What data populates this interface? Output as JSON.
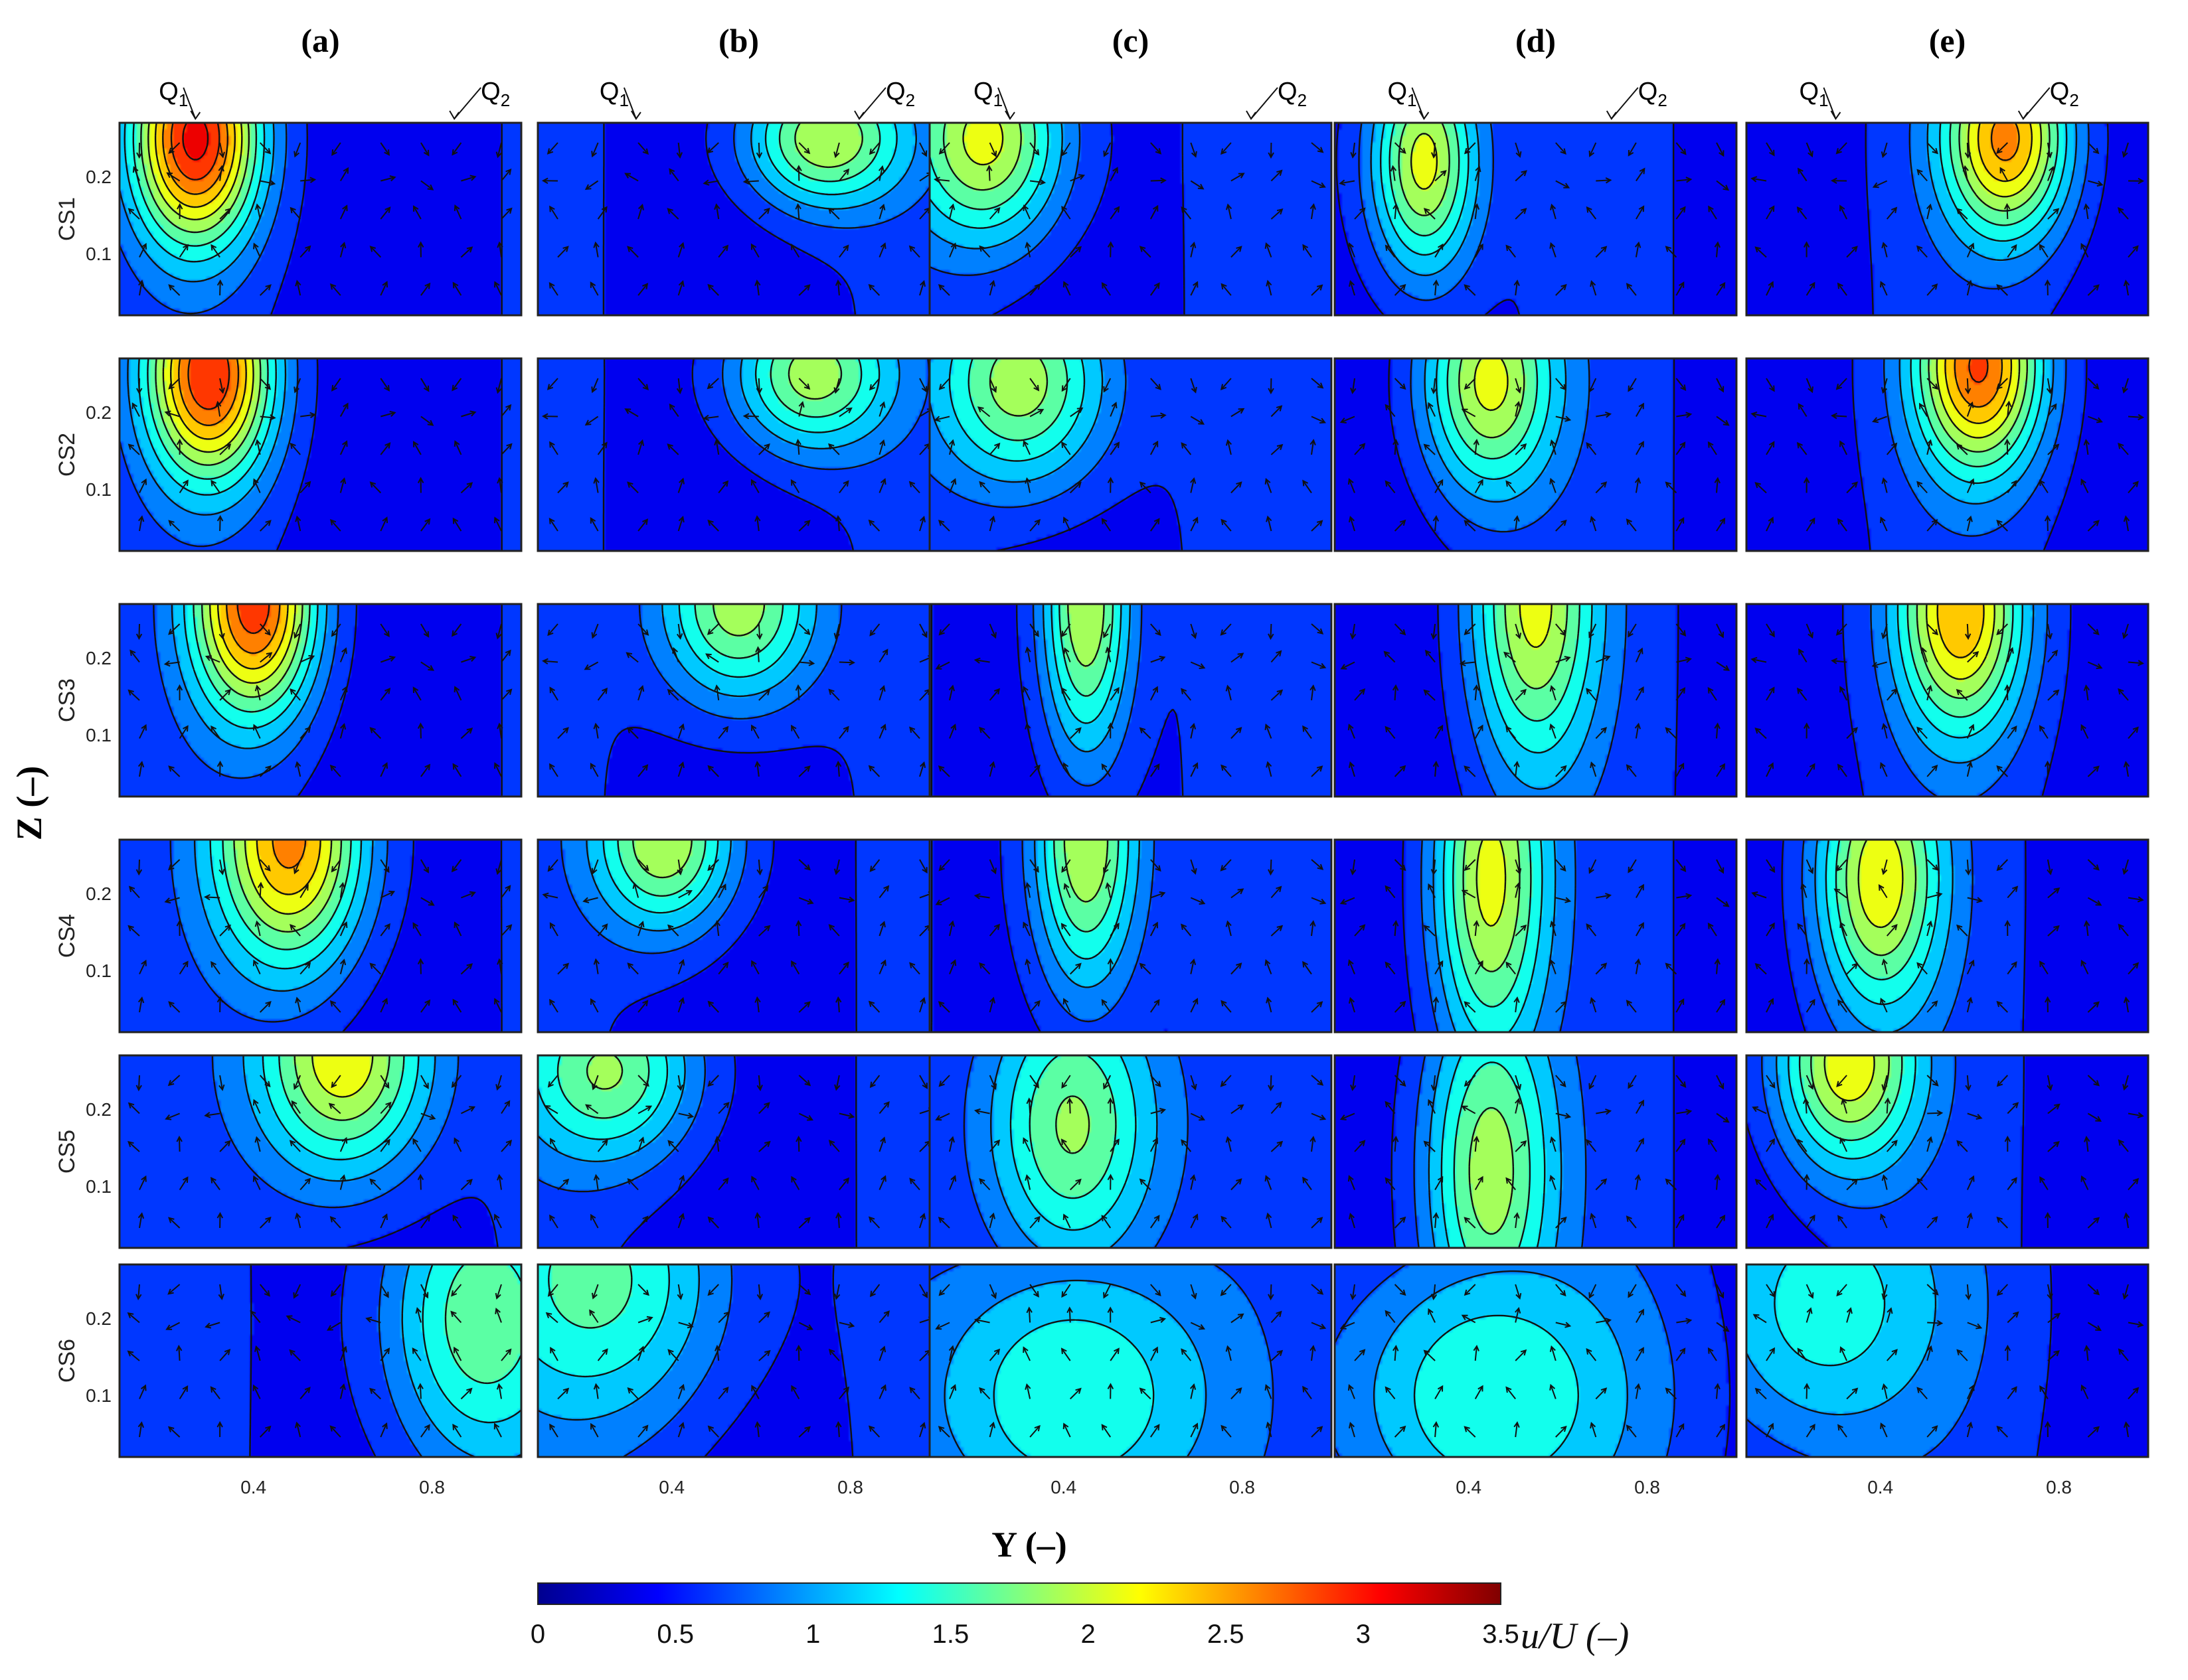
{
  "chart_data": {
    "type": "heatmap",
    "columns": [
      "(a)",
      "(b)",
      "(c)",
      "(d)",
      "(e)"
    ],
    "rows": [
      "CS1",
      "CS2",
      "CS3",
      "CS4",
      "CS5",
      "CS6"
    ],
    "xlabel": "Y (–)",
    "ylabel": "Z (–)",
    "x_ticks": [
      "0.4",
      "0.8"
    ],
    "y_ticks": [
      "0.1",
      "0.2"
    ],
    "x_tick_values": [
      0.4,
      0.8
    ],
    "y_tick_values": [
      0.1,
      0.2
    ],
    "xlim": [
      0.1,
      1.0
    ],
    "ylim": [
      0.02,
      0.27
    ],
    "inlet_labels": {
      "q1": [
        "Q",
        "1"
      ],
      "q2": [
        "Q",
        "2"
      ],
      "positions_y": {
        "(a)": [
          0.27,
          0.85
        ],
        "(b)": [
          0.32,
          0.82
        ],
        "(c)": [
          0.28,
          0.82
        ],
        "(d)": [
          0.3,
          0.72
        ],
        "(e)": [
          0.3,
          0.72
        ]
      }
    },
    "colorbar": {
      "title": "u/U (–)",
      "min": 0,
      "max": 3.5,
      "ticks": [
        "0",
        "0.5",
        "1",
        "1.5",
        "2",
        "2.5",
        "3",
        "3.5"
      ],
      "tick_values": [
        0,
        0.5,
        1,
        1.5,
        2,
        2.5,
        3,
        3.5
      ],
      "colormap": "jet",
      "colors": [
        "#00008f",
        "#0000ff",
        "#0080ff",
        "#00ffff",
        "#80ff80",
        "#ffff00",
        "#ff8000",
        "#ff0000",
        "#800000"
      ]
    },
    "velocity_peaks": [
      [
        {
          "y": 0.27,
          "z": 0.25,
          "u": 3.1,
          "sy": 0.14,
          "sz": 0.14
        },
        {
          "y": 0.3,
          "z": 0.25,
          "u": 3.0,
          "sy": 0.14,
          "sz": 0.14
        },
        {
          "y": 0.4,
          "z": 0.27,
          "u": 2.9,
          "sy": 0.14,
          "sz": 0.15
        },
        {
          "y": 0.48,
          "z": 0.27,
          "u": 2.6,
          "sy": 0.17,
          "sz": 0.17
        },
        {
          "y": 0.6,
          "z": 0.27,
          "u": 2.2,
          "sy": 0.2,
          "sz": 0.16
        },
        {
          "y": 0.92,
          "z": 0.2,
          "u": 1.7,
          "sy": 0.22,
          "sz": 0.2
        }
      ],
      [
        {
          "y": 0.75,
          "z": 0.25,
          "u": 2.0,
          "sy": 0.18,
          "sz": 0.09
        },
        {
          "y": 0.72,
          "z": 0.25,
          "u": 1.9,
          "sy": 0.18,
          "sz": 0.1
        },
        {
          "y": 0.55,
          "z": 0.27,
          "u": 1.9,
          "sy": 0.18,
          "sz": 0.13
        },
        {
          "y": 0.38,
          "z": 0.27,
          "u": 2.0,
          "sy": 0.16,
          "sz": 0.12
        },
        {
          "y": 0.25,
          "z": 0.25,
          "u": 1.8,
          "sy": 0.2,
          "sz": 0.12
        },
        {
          "y": 0.22,
          "z": 0.25,
          "u": 1.6,
          "sy": 0.3,
          "sz": 0.2
        }
      ],
      [
        {
          "y": 0.22,
          "z": 0.25,
          "u": 2.1,
          "sy": 0.18,
          "sz": 0.14
        },
        {
          "y": 0.3,
          "z": 0.24,
          "u": 1.9,
          "sy": 0.2,
          "sz": 0.14
        },
        {
          "y": 0.45,
          "z": 0.27,
          "u": 2.0,
          "sy": 0.1,
          "sz": 0.2
        },
        {
          "y": 0.45,
          "z": 0.27,
          "u": 2.0,
          "sy": 0.12,
          "sz": 0.2
        },
        {
          "y": 0.42,
          "z": 0.18,
          "u": 1.8,
          "sy": 0.2,
          "sz": 0.2
        },
        {
          "y": 0.42,
          "z": 0.1,
          "u": 1.5,
          "sy": 0.35,
          "sz": 0.2
        }
      ],
      [
        {
          "y": 0.3,
          "z": 0.22,
          "u": 2.1,
          "sy": 0.12,
          "sz": 0.15
        },
        {
          "y": 0.45,
          "z": 0.24,
          "u": 2.1,
          "sy": 0.15,
          "sz": 0.15
        },
        {
          "y": 0.55,
          "z": 0.27,
          "u": 2.1,
          "sy": 0.14,
          "sz": 0.22
        },
        {
          "y": 0.45,
          "z": 0.22,
          "u": 2.1,
          "sy": 0.13,
          "sz": 0.25
        },
        {
          "y": 0.45,
          "z": 0.12,
          "u": 1.9,
          "sy": 0.15,
          "sz": 0.25
        },
        {
          "y": 0.45,
          "z": 0.1,
          "u": 1.5,
          "sy": 0.35,
          "sz": 0.2
        }
      ],
      [
        {
          "y": 0.68,
          "z": 0.25,
          "u": 2.6,
          "sy": 0.14,
          "sz": 0.13
        },
        {
          "y": 0.62,
          "z": 0.26,
          "u": 2.8,
          "sy": 0.14,
          "sz": 0.14
        },
        {
          "y": 0.58,
          "z": 0.26,
          "u": 2.5,
          "sy": 0.14,
          "sz": 0.16
        },
        {
          "y": 0.4,
          "z": 0.22,
          "u": 2.2,
          "sy": 0.14,
          "sz": 0.18
        },
        {
          "y": 0.33,
          "z": 0.26,
          "u": 2.2,
          "sy": 0.16,
          "sz": 0.14
        },
        {
          "y": 0.28,
          "z": 0.22,
          "u": 1.4,
          "sy": 0.3,
          "sz": 0.2
        }
      ]
    ]
  }
}
